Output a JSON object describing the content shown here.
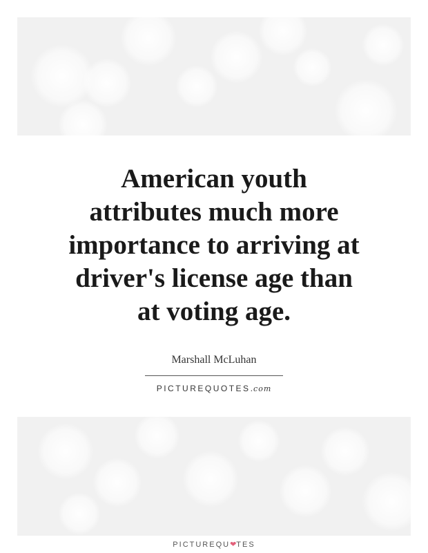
{
  "quote": {
    "lines": [
      "American youth",
      "attributes much more",
      "importance to arriving at",
      "driver's license age than",
      "at voting age."
    ]
  },
  "author": "Marshall McLuhan",
  "brand": {
    "name": "PICTUREQUOTES",
    "suffix": ".com"
  },
  "footer_logo": {
    "before_heart": "PICTUREQU",
    "after_heart": "TES",
    "heart_icon": "heart-icon",
    "heart_color": "#e2607a"
  },
  "colors": {
    "background": "#ffffff",
    "bokeh_panel": "#f1f1f1",
    "text": "#1a1a1a"
  }
}
